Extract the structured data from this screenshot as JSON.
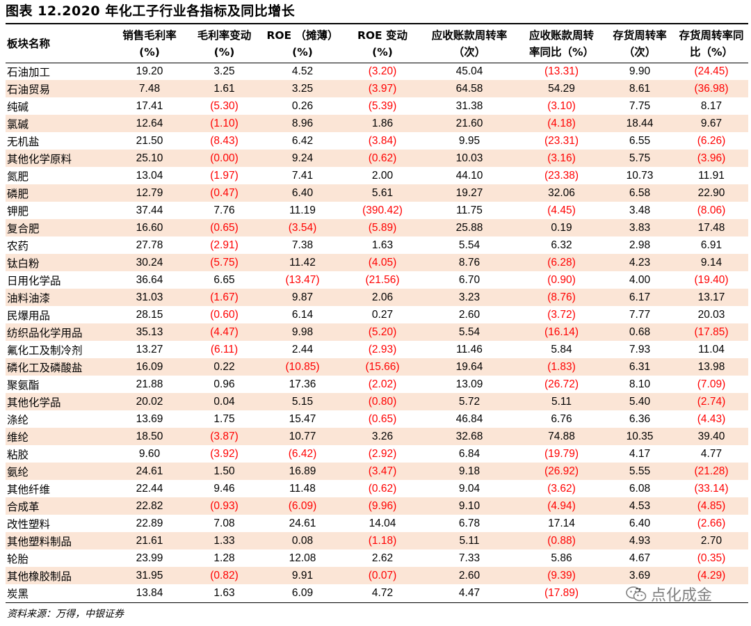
{
  "title": "图表 12.2020 年化工子行业各指标及同比增长",
  "headers": [
    [
      "板块名称"
    ],
    [
      "销售毛利率",
      "(%)"
    ],
    [
      "毛利率变动",
      "(%)"
    ],
    [
      "ROE （摊薄）",
      "(%)"
    ],
    [
      "ROE 变动",
      "(%)"
    ],
    [
      "应收账款周转率",
      "（次）"
    ],
    [
      "应收账款周转",
      "率同比（%）"
    ],
    [
      "存货周转率",
      "（次）"
    ],
    [
      "存货周转率同",
      "比（%）"
    ]
  ],
  "rows": [
    [
      "石油加工",
      "19.20",
      "3.25",
      "4.52",
      "(3.20)",
      "45.04",
      "(13.31)",
      "9.90",
      "(24.45)"
    ],
    [
      "石油贸易",
      "7.48",
      "1.61",
      "3.25",
      "(3.97)",
      "64.58",
      "54.29",
      "8.61",
      "(36.98)"
    ],
    [
      "纯碱",
      "17.41",
      "(5.30)",
      "0.26",
      "(5.39)",
      "31.38",
      "(3.10)",
      "7.75",
      "8.17"
    ],
    [
      "氯碱",
      "12.64",
      "(1.10)",
      "8.96",
      "1.86",
      "21.60",
      "(4.18)",
      "18.44",
      "9.67"
    ],
    [
      "无机盐",
      "21.50",
      "(8.43)",
      "6.42",
      "(3.84)",
      "9.95",
      "(23.31)",
      "6.55",
      "(6.26)"
    ],
    [
      "其他化学原料",
      "25.10",
      "(0.00)",
      "9.24",
      "(0.62)",
      "10.03",
      "(3.16)",
      "5.75",
      "(3.96)"
    ],
    [
      "氮肥",
      "13.04",
      "(1.97)",
      "7.41",
      "2.00",
      "44.10",
      "(23.38)",
      "10.73",
      "11.91"
    ],
    [
      "磷肥",
      "12.79",
      "(0.47)",
      "6.40",
      "5.61",
      "19.27",
      "32.06",
      "6.58",
      "22.90"
    ],
    [
      "钾肥",
      "37.44",
      "7.76",
      "11.19",
      "(390.42)",
      "11.75",
      "(4.45)",
      "3.48",
      "(8.06)"
    ],
    [
      "复合肥",
      "16.60",
      "(0.65)",
      "(3.54)",
      "(5.89)",
      "25.88",
      "0.19",
      "3.83",
      "17.48"
    ],
    [
      "农药",
      "27.78",
      "(2.91)",
      "7.38",
      "1.63",
      "5.54",
      "6.32",
      "2.98",
      "6.91"
    ],
    [
      "钛白粉",
      "30.24",
      "(5.75)",
      "11.42",
      "(4.05)",
      "8.76",
      "(6.28)",
      "4.23",
      "9.14"
    ],
    [
      "日用化学品",
      "36.64",
      "6.65",
      "(13.47)",
      "(21.56)",
      "6.70",
      "(0.90)",
      "4.00",
      "(19.40)"
    ],
    [
      "油料油漆",
      "31.03",
      "(1.67)",
      "9.87",
      "2.06",
      "3.23",
      "(8.76)",
      "6.17",
      "13.17"
    ],
    [
      "民爆用品",
      "28.15",
      "(0.60)",
      "6.14",
      "0.27",
      "2.60",
      "(3.72)",
      "7.77",
      "20.03"
    ],
    [
      "纺织品化学用品",
      "35.13",
      "(4.47)",
      "9.98",
      "(5.20)",
      "5.54",
      "(16.14)",
      "0.68",
      "(17.85)"
    ],
    [
      "氟化工及制冷剂",
      "13.27",
      "(6.11)",
      "2.44",
      "(2.93)",
      "11.46",
      "5.84",
      "7.93",
      "11.04"
    ],
    [
      "磷化工及磷酸盐",
      "16.09",
      "0.22",
      "(10.85)",
      "(15.66)",
      "19.64",
      "(1.83)",
      "6.31",
      "13.98"
    ],
    [
      "聚氨酯",
      "21.88",
      "0.96",
      "17.36",
      "(2.02)",
      "13.09",
      "(26.72)",
      "8.10",
      "(7.09)"
    ],
    [
      "其他化学品",
      "20.02",
      "0.04",
      "5.15",
      "(0.80)",
      "5.72",
      "5.11",
      "5.40",
      "(2.74)"
    ],
    [
      "涤纶",
      "13.69",
      "1.75",
      "15.47",
      "(0.65)",
      "46.84",
      "6.76",
      "6.36",
      "(4.43)"
    ],
    [
      "维纶",
      "18.50",
      "(3.87)",
      "10.77",
      "3.26",
      "32.68",
      "74.88",
      "10.35",
      "39.40"
    ],
    [
      "粘胶",
      "9.60",
      "(3.92)",
      "(6.42)",
      "(2.92)",
      "6.84",
      "(19.79)",
      "4.17",
      "4.77"
    ],
    [
      "氨纶",
      "24.61",
      "1.50",
      "16.89",
      "(3.47)",
      "9.18",
      "(26.92)",
      "5.55",
      "(21.28)"
    ],
    [
      "其他纤维",
      "22.44",
      "9.46",
      "11.48",
      "(0.62)",
      "9.04",
      "(3.62)",
      "6.08",
      "(33.14)"
    ],
    [
      "合成革",
      "22.82",
      "(0.93)",
      "(6.09)",
      "(9.96)",
      "9.10",
      "(4.94)",
      "4.53",
      "(4.85)"
    ],
    [
      "改性塑料",
      "22.89",
      "7.08",
      "24.61",
      "14.04",
      "6.78",
      "17.14",
      "6.40",
      "(2.66)"
    ],
    [
      "其他塑料制品",
      "21.61",
      "1.33",
      "0.08",
      "(1.18)",
      "5.11",
      "(0.88)",
      "4.93",
      "2.70"
    ],
    [
      "轮胎",
      "23.99",
      "1.28",
      "12.08",
      "2.62",
      "7.33",
      "5.86",
      "4.67",
      "(0.35)"
    ],
    [
      "其他橡胶制品",
      "31.95",
      "(0.82)",
      "9.91",
      "(0.07)",
      "2.60",
      "(9.39)",
      "3.69",
      "(4.29)"
    ],
    [
      "炭黑",
      "13.84",
      "1.63",
      "6.09",
      "4.72",
      "4.47",
      "(17.89)",
      "7.",
      ""
    ]
  ],
  "source": "资料来源：万得，中银证券",
  "watermark": "点化成金",
  "colors": {
    "stripe": "#fbe5d6",
    "negative": "#ff0000",
    "text": "#000000"
  }
}
